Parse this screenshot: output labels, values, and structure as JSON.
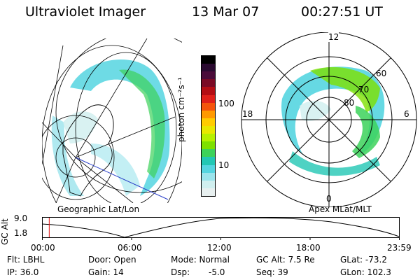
{
  "header": {
    "instrument": "Ultraviolet Imager",
    "date": "13 Mar 07",
    "time": "00:27:51 UT"
  },
  "colorbar": {
    "label": "photon cm⁻²s⁻¹",
    "ticks": [
      "100",
      "10"
    ],
    "colors": [
      "#000000",
      "#2a0a30",
      "#4b0c3a",
      "#7a0a25",
      "#b30d14",
      "#e0201a",
      "#f5540c",
      "#ff9900",
      "#ffcc00",
      "#e8e800",
      "#b6f000",
      "#7ee000",
      "#3cd25a",
      "#22c7b4",
      "#55d5e0",
      "#9be4ec",
      "#d0efef",
      "#e8f0f0"
    ]
  },
  "left_map": {
    "caption": "Geographic Lat/Lon"
  },
  "right_map": {
    "caption": "Apex MLat/MLT",
    "mlt_labels": {
      "top": "12",
      "bottom": "0",
      "left": "18",
      "right": "6"
    },
    "lat_labels": [
      "60",
      "70",
      "80"
    ]
  },
  "altitude_plot": {
    "ylabel": "GC Alt",
    "yticks": [
      "9.0",
      "1.8"
    ],
    "xticks": [
      "00:00",
      "06:00",
      "12:00",
      "18:00",
      "23:59"
    ],
    "current_marker_fraction": 0.0193
  },
  "info": {
    "flt": "Flt: LBHL",
    "ip": "IP: 36.0",
    "door": "Door: Open",
    "gain": "Gain: 14",
    "mode": "Mode: Normal",
    "dsp": "Dsp:",
    "dsp_val": "-5.0",
    "gcalt": "GC Alt: 7.5 Re",
    "seq": "Seq: 39",
    "glat": "GLat: -73.2",
    "glon": "GLon: 102.3"
  }
}
